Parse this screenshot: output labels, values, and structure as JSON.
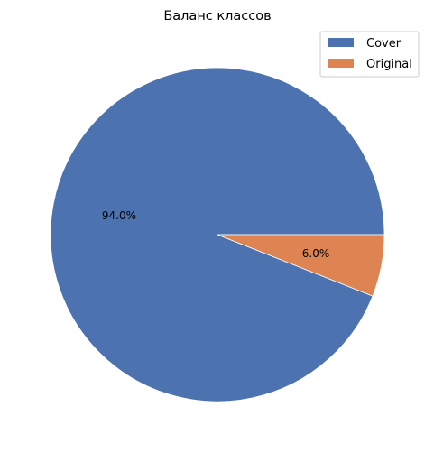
{
  "chart_data": {
    "type": "pie",
    "title": "Баланс классов",
    "categories": [
      "Cover",
      "Original"
    ],
    "values": [
      94.0,
      6.0
    ],
    "labels": [
      "94.0%",
      "6.0%"
    ],
    "colors": [
      "#4c72b0",
      "#dd8452"
    ],
    "legend": {
      "position": "top-right",
      "entries": [
        "Cover",
        "Original"
      ]
    },
    "start_angle_deg": 0,
    "direction": "counterclockwise"
  }
}
